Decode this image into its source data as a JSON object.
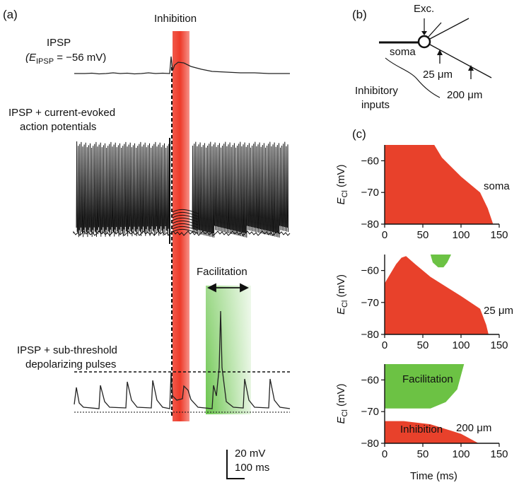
{
  "panel_a": {
    "label": "(a)",
    "inhibition_label": "Inhibition",
    "ipsp_title": "IPSP",
    "ipsp_reversal_prefix": "(E",
    "ipsp_reversal_sub": "IPSP",
    "ipsp_reversal_value": " = −56 mV)",
    "ap_label_line1": "IPSP + current-evoked",
    "ap_label_line2": "action potentials",
    "facilitation_label": "Facilitation",
    "sub_label_line1": "IPSP + sub-threshold",
    "sub_label_line2": "depolarizing pulses",
    "scale_v": "20 mV",
    "scale_t": "100 ms",
    "colors": {
      "inhibition": "#ee3b2a",
      "facilitation": "#5bbf3a"
    }
  },
  "panel_b": {
    "label": "(b)",
    "exc_label": "Exc.",
    "soma_label": "soma",
    "d1_label": "25 μm",
    "d2_label": "200 μm",
    "inh_line1": "Inhibitory",
    "inh_line2": "inputs"
  },
  "panel_c": {
    "label": "(c)",
    "x_label": "Time (ms)",
    "y_label_prefix": "E",
    "y_label_sub": "Cl",
    "y_label_unit": " (mV)"
  },
  "chart_data": [
    {
      "type": "area",
      "title": "soma",
      "xlabel": "Time (ms)",
      "ylabel": "E_Cl (mV)",
      "xlim": [
        0,
        150
      ],
      "ylim": [
        -80,
        -55
      ],
      "xticks": [
        0,
        50,
        100,
        150
      ],
      "yticks": [
        -60,
        -70,
        -80
      ],
      "series": [
        {
          "region": "inhibition",
          "color": "#e8412b",
          "x": [
            0,
            65,
            75,
            100,
            125,
            135,
            142
          ],
          "y": [
            -55,
            -55,
            -59,
            -65,
            -70,
            -75,
            -80
          ]
        }
      ]
    },
    {
      "type": "area",
      "title": "25 μm",
      "xlabel": "Time (ms)",
      "ylabel": "E_Cl (mV)",
      "xlim": [
        0,
        150
      ],
      "ylim": [
        -80,
        -55
      ],
      "xticks": [
        0,
        50,
        100,
        150
      ],
      "yticks": [
        -60,
        -70,
        -80
      ],
      "series": [
        {
          "region": "inhibition",
          "color": "#e8412b",
          "x": [
            0,
            5,
            15,
            22,
            28,
            40,
            60,
            100,
            125,
            133,
            136
          ],
          "y": [
            -64,
            -62,
            -58,
            -56,
            -55.5,
            -58,
            -62,
            -68,
            -72,
            -77,
            -80
          ]
        },
        {
          "region": "facilitation",
          "color": "#6cc244",
          "x": [
            60,
            63,
            70,
            77,
            82,
            87
          ],
          "y": [
            -55,
            -57.5,
            -59,
            -59,
            -57.5,
            -55
          ]
        }
      ]
    },
    {
      "type": "area",
      "title": "200 μm",
      "xlabel": "Time (ms)",
      "ylabel": "E_Cl (mV)",
      "xlim": [
        0,
        150
      ],
      "ylim": [
        -80,
        -55
      ],
      "xticks": [
        0,
        50,
        100,
        150
      ],
      "yticks": [
        -60,
        -70,
        -80
      ],
      "series": [
        {
          "region": "facilitation",
          "label": "Facilitation",
          "color": "#6cc244",
          "x": [
            0,
            60,
            80,
            95,
            104
          ],
          "y": [
            -69,
            -69,
            -67,
            -63,
            -55
          ]
        },
        {
          "region": "inhibition",
          "label": "Inhibition",
          "color": "#e8412b",
          "x": [
            0,
            25,
            60,
            100,
            123
          ],
          "y": [
            -73,
            -73,
            -74,
            -77,
            -80
          ]
        }
      ]
    }
  ]
}
